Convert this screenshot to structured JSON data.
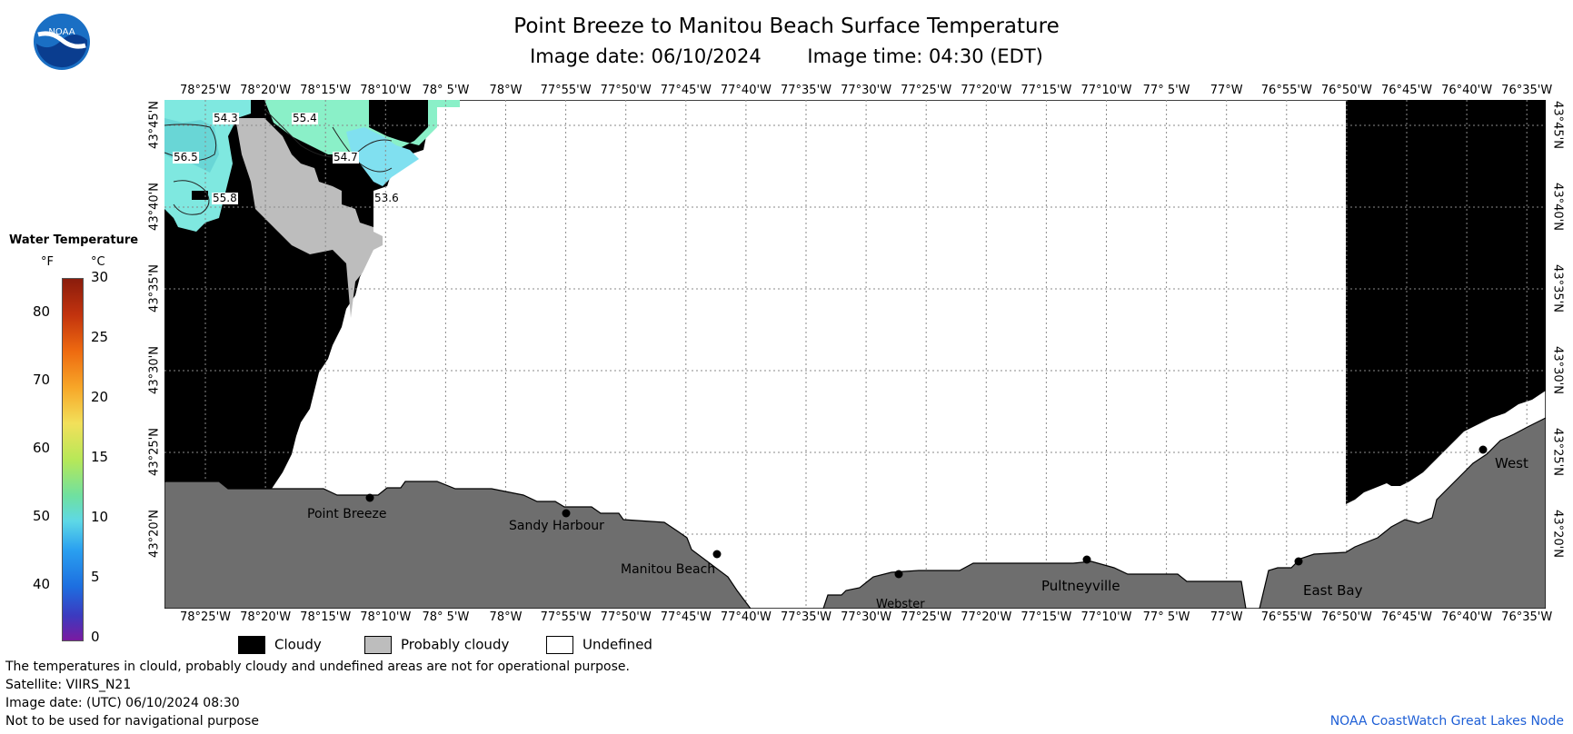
{
  "header": {
    "title": "Point Breeze to Manitou Beach Surface Temperature",
    "image_date": "Image date: 06/10/2024",
    "image_time": "Image time: 04:30 (EDT)"
  },
  "logo": {
    "text": "NOAA",
    "icon": "noaa-logo-icon"
  },
  "map": {
    "lon_labels": [
      "78°25'W",
      "78°20'W",
      "78°15'W",
      "78°10'W",
      "78° 5'W",
      "78°W",
      "77°55'W",
      "77°50'W",
      "77°45'W",
      "77°40'W",
      "77°35'W",
      "77°30'W",
      "77°25'W",
      "77°20'W",
      "77°15'W",
      "77°10'W",
      "77° 5'W",
      "77°W",
      "76°55'W",
      "76°50'W",
      "76°45'W",
      "76°40'W",
      "76°35'W"
    ],
    "lat_labels": [
      "43°45'N",
      "43°40'N",
      "43°35'N",
      "43°30'N",
      "43°25'N",
      "43°20'N"
    ],
    "places": [
      {
        "name": "Point Breeze"
      },
      {
        "name": "Sandy Harbour"
      },
      {
        "name": "Manitou Beach"
      },
      {
        "name": "Webster"
      },
      {
        "name": "Pultneyville"
      },
      {
        "name": "East Bay"
      },
      {
        "name": "West"
      }
    ],
    "temperature_labels": [
      "54.3",
      "55.4",
      "56.5",
      "54.7",
      "55.8",
      "53.6"
    ],
    "colors": {
      "land": "#6e6e6e",
      "cloudy": "#000000",
      "probably_cloudy": "#bdbdbd",
      "undefined": "#ffffff"
    }
  },
  "legend": {
    "title": "Water Temperature",
    "unit_f": "°F",
    "unit_c": "°C",
    "f_ticks": [
      "80",
      "70",
      "60",
      "50",
      "40"
    ],
    "c_ticks": [
      "30",
      "25",
      "20",
      "15",
      "10",
      "5",
      "0"
    ]
  },
  "key": {
    "cloudy": "Cloudy",
    "probably_cloudy": "Probably cloudy",
    "undefined": "Undefined"
  },
  "notes": {
    "disclaimer": "The temperatures in clould, probably cloudy and undefined areas are not for operational purpose.",
    "satellite": "Satellite: VIIRS_N21",
    "utc_date": "Image date: (UTC) 06/10/2024  08:30",
    "navigation": "Not to be used for navigational purpose"
  },
  "credit": "NOAA CoastWatch Great Lakes Node"
}
